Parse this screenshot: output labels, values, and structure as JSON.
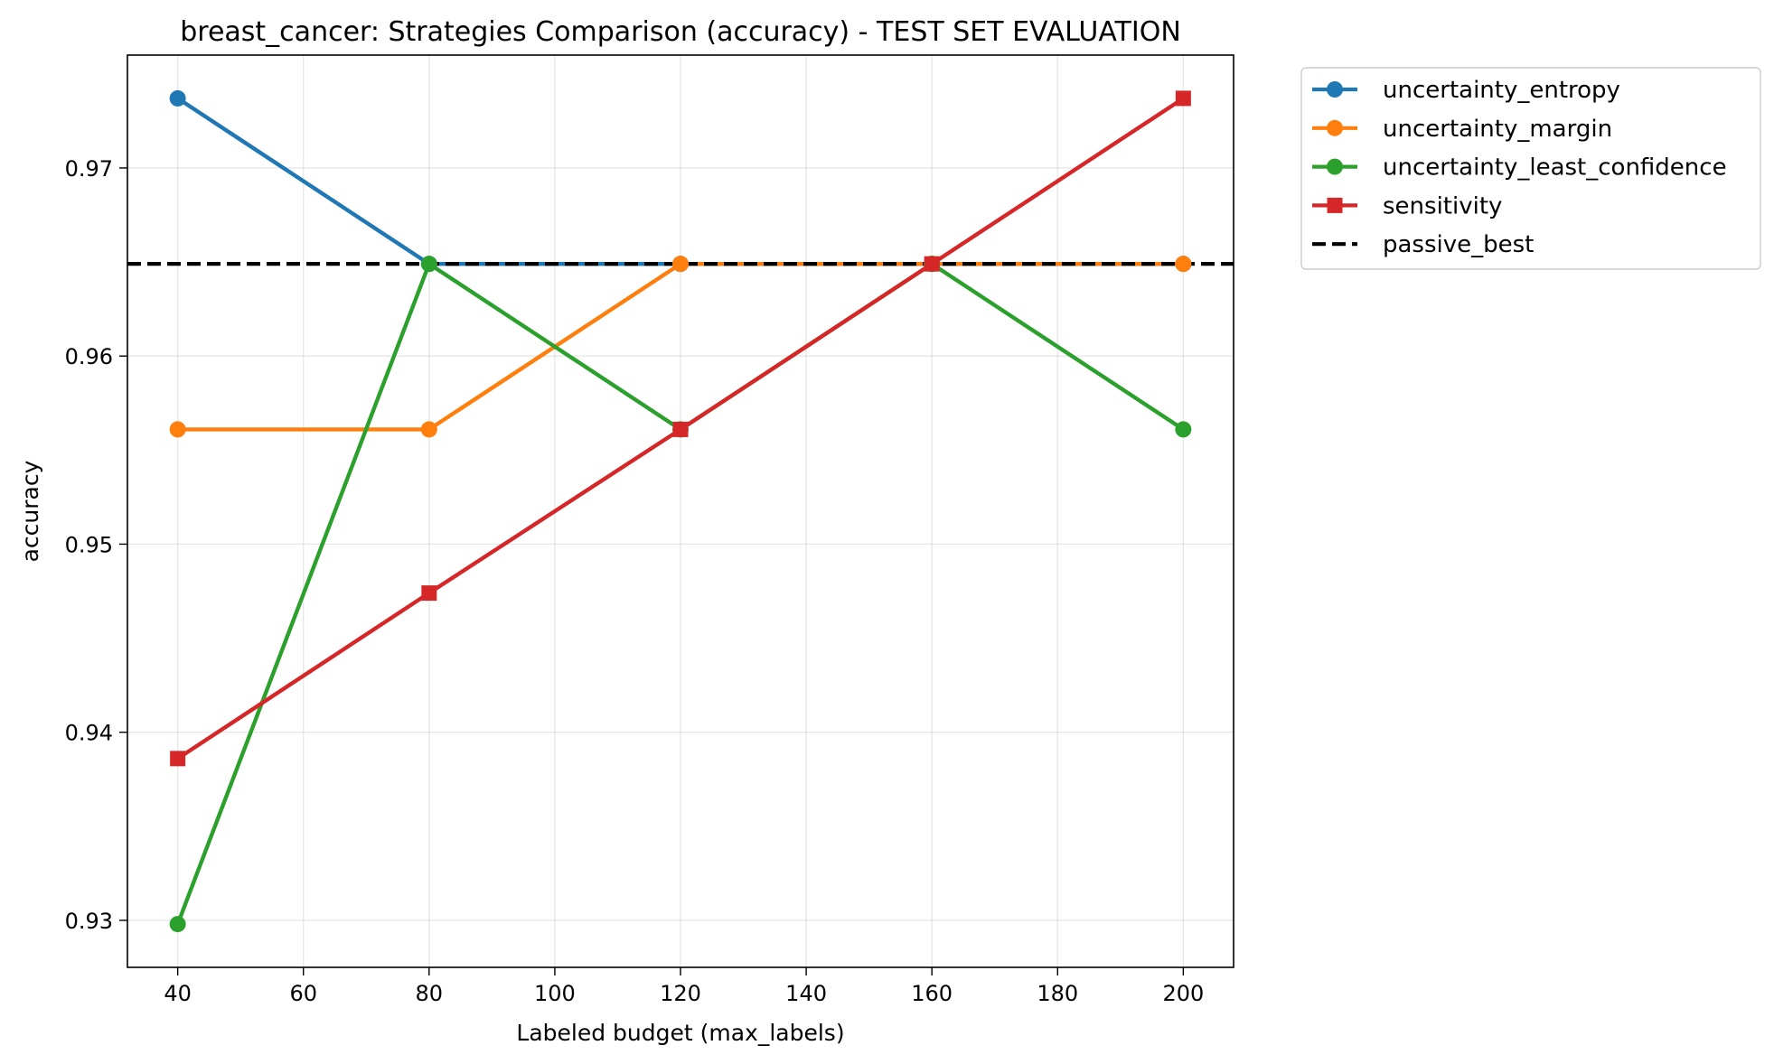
{
  "chart_data": {
    "type": "line",
    "title": "breast_cancer: Strategies Comparison (accuracy) - TEST SET EVALUATION",
    "xlabel": "Labeled budget (max_labels)",
    "ylabel": "accuracy",
    "x": [
      40,
      80,
      120,
      160,
      200
    ],
    "xlim": [
      32,
      208
    ],
    "ylim": [
      0.9275,
      0.976
    ],
    "xticks": [
      40,
      60,
      80,
      100,
      120,
      140,
      160,
      180,
      200
    ],
    "yticks": [
      0.93,
      0.94,
      0.95,
      0.96,
      0.97
    ],
    "ytick_labels": [
      "0.93",
      "0.94",
      "0.95",
      "0.96",
      "0.97"
    ],
    "grid": true,
    "legend_position": "outside-top-right",
    "series": [
      {
        "name": "uncertainty_entropy",
        "color": "#1f77b4",
        "marker": "circle",
        "values": [
          0.9737,
          0.9649,
          0.9649,
          0.9649,
          0.9649
        ]
      },
      {
        "name": "uncertainty_margin",
        "color": "#ff7f0e",
        "marker": "circle",
        "values": [
          0.9561,
          0.9561,
          0.9649,
          0.9649,
          0.9649
        ]
      },
      {
        "name": "uncertainty_least_confidence",
        "color": "#2ca02c",
        "marker": "circle",
        "values": [
          0.9298,
          0.9649,
          0.9561,
          0.9649,
          0.9561
        ]
      },
      {
        "name": "sensitivity",
        "color": "#d62728",
        "marker": "square",
        "values": [
          0.9386,
          0.9474,
          0.9561,
          0.9649,
          0.9737
        ]
      }
    ],
    "reference_lines": [
      {
        "name": "passive_best",
        "value": 0.9649,
        "color": "#000000",
        "style": "dashed"
      }
    ]
  }
}
